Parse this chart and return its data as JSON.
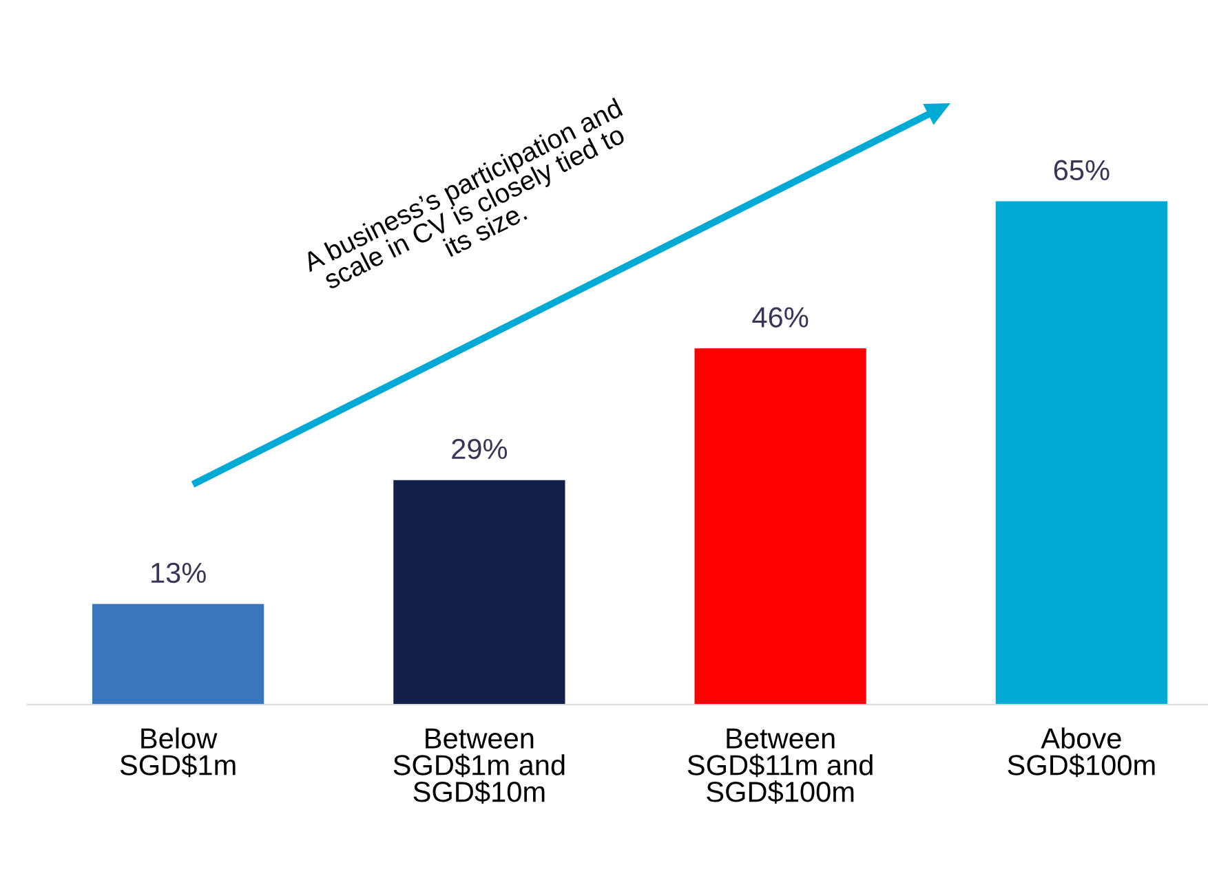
{
  "chart_data": {
    "type": "bar",
    "categories": [
      "Below\nSGD$1m",
      "Between\nSGD$1m and\nSGD$10m",
      "Between\nSGD$11m and\nSGD$100m",
      "Above\nSGD$100m"
    ],
    "values": [
      13,
      29,
      46,
      65
    ],
    "value_labels": [
      "13%",
      "29%",
      "46%",
      "65%"
    ],
    "colors": [
      "#3a75bd",
      "#13204a",
      "#ff0000",
      "#00aad4"
    ],
    "annotations": [
      "A business’s participation and\nscale in CV is closely tied to\nits size."
    ],
    "grid": false,
    "legend": false
  }
}
